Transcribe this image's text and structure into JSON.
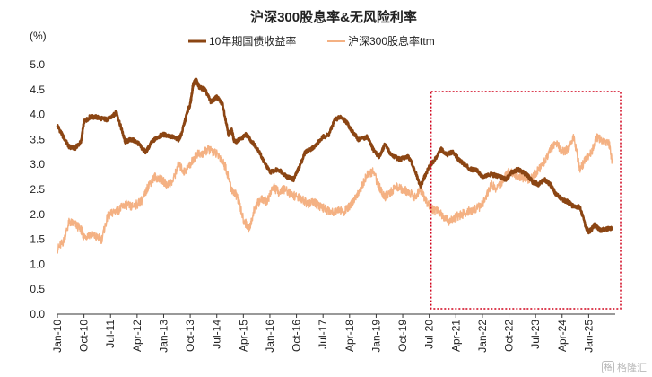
{
  "chart_data": {
    "type": "line",
    "title": "沪深300股息率&无风险利率",
    "unit_label": "(%)",
    "ylim": [
      0,
      5.0
    ],
    "y_ticks": [
      "5.0",
      "4.5",
      "4.0",
      "3.5",
      "3.0",
      "2.5",
      "2.0",
      "1.5",
      "1.0",
      "0.5",
      "0.0"
    ],
    "x_range": [
      "2010-01",
      "2025-10"
    ],
    "x_tick_labels": [
      "Jan-10",
      "Oct-10",
      "Jul-11",
      "Apr-12",
      "Jan-13",
      "Oct-13",
      "Jul-14",
      "Apr-15",
      "Jan-16",
      "Oct-16",
      "Jul-17",
      "Apr-18",
      "Jan-19",
      "Oct-19",
      "Jul-20",
      "Apr-21",
      "Jan-22",
      "Oct-22",
      "Jul-23",
      "Apr-24",
      "Jan-25"
    ],
    "legend_position": "top",
    "grid": false,
    "highlight_box": {
      "from": "2020-07",
      "to": "2025-10",
      "style": "dotted",
      "color": "#d0021b"
    },
    "series": [
      {
        "name": "10年期国债收益率",
        "color": "#8b4513",
        "points": [
          [
            "2010-01",
            3.78
          ],
          [
            "2010-03",
            3.55
          ],
          [
            "2010-05",
            3.35
          ],
          [
            "2010-07",
            3.33
          ],
          [
            "2010-09",
            3.45
          ],
          [
            "2010-10",
            3.85
          ],
          [
            "2010-12",
            3.95
          ],
          [
            "2011-02",
            3.95
          ],
          [
            "2011-04",
            3.92
          ],
          [
            "2011-06",
            3.9
          ],
          [
            "2011-08",
            3.98
          ],
          [
            "2011-09",
            4.05
          ],
          [
            "2011-11",
            3.65
          ],
          [
            "2011-12",
            3.45
          ],
          [
            "2012-02",
            3.5
          ],
          [
            "2012-04",
            3.45
          ],
          [
            "2012-06",
            3.3
          ],
          [
            "2012-07",
            3.25
          ],
          [
            "2012-09",
            3.45
          ],
          [
            "2012-11",
            3.55
          ],
          [
            "2013-01",
            3.6
          ],
          [
            "2013-04",
            3.55
          ],
          [
            "2013-06",
            3.5
          ],
          [
            "2013-07",
            3.6
          ],
          [
            "2013-09",
            4.05
          ],
          [
            "2013-10",
            4.2
          ],
          [
            "2013-11",
            4.6
          ],
          [
            "2013-12",
            4.7
          ],
          [
            "2014-01",
            4.55
          ],
          [
            "2014-03",
            4.5
          ],
          [
            "2014-05",
            4.25
          ],
          [
            "2014-07",
            4.35
          ],
          [
            "2014-09",
            4.2
          ],
          [
            "2014-11",
            3.6
          ],
          [
            "2014-12",
            3.7
          ],
          [
            "2015-01",
            3.45
          ],
          [
            "2015-03",
            3.5
          ],
          [
            "2015-05",
            3.6
          ],
          [
            "2015-07",
            3.45
          ],
          [
            "2015-09",
            3.3
          ],
          [
            "2015-11",
            3.05
          ],
          [
            "2016-01",
            2.85
          ],
          [
            "2016-04",
            2.9
          ],
          [
            "2016-07",
            2.75
          ],
          [
            "2016-09",
            2.7
          ],
          [
            "2016-11",
            2.95
          ],
          [
            "2017-01",
            3.25
          ],
          [
            "2017-04",
            3.35
          ],
          [
            "2017-07",
            3.55
          ],
          [
            "2017-09",
            3.6
          ],
          [
            "2017-11",
            3.9
          ],
          [
            "2018-01",
            3.95
          ],
          [
            "2018-03",
            3.85
          ],
          [
            "2018-05",
            3.65
          ],
          [
            "2018-07",
            3.5
          ],
          [
            "2018-10",
            3.55
          ],
          [
            "2018-12",
            3.3
          ],
          [
            "2019-02",
            3.15
          ],
          [
            "2019-04",
            3.4
          ],
          [
            "2019-06",
            3.2
          ],
          [
            "2019-09",
            3.1
          ],
          [
            "2019-12",
            3.15
          ],
          [
            "2020-02",
            2.9
          ],
          [
            "2020-04",
            2.55
          ],
          [
            "2020-05",
            2.7
          ],
          [
            "2020-07",
            2.95
          ],
          [
            "2020-09",
            3.1
          ],
          [
            "2020-11",
            3.3
          ],
          [
            "2021-01",
            3.2
          ],
          [
            "2021-03",
            3.25
          ],
          [
            "2021-05",
            3.1
          ],
          [
            "2021-07",
            3.0
          ],
          [
            "2021-09",
            2.9
          ],
          [
            "2021-11",
            2.9
          ],
          [
            "2022-01",
            2.75
          ],
          [
            "2022-04",
            2.8
          ],
          [
            "2022-07",
            2.75
          ],
          [
            "2022-09",
            2.7
          ],
          [
            "2022-11",
            2.85
          ],
          [
            "2023-01",
            2.9
          ],
          [
            "2023-04",
            2.8
          ],
          [
            "2023-06",
            2.65
          ],
          [
            "2023-08",
            2.6
          ],
          [
            "2023-10",
            2.7
          ],
          [
            "2023-12",
            2.6
          ],
          [
            "2024-02",
            2.4
          ],
          [
            "2024-04",
            2.3
          ],
          [
            "2024-06",
            2.25
          ],
          [
            "2024-08",
            2.15
          ],
          [
            "2024-10",
            2.15
          ],
          [
            "2024-12",
            1.75
          ],
          [
            "2025-01",
            1.65
          ],
          [
            "2025-02",
            1.7
          ],
          [
            "2025-03",
            1.8
          ],
          [
            "2025-05",
            1.68
          ],
          [
            "2025-07",
            1.7
          ],
          [
            "2025-09",
            1.72
          ]
        ]
      },
      {
        "name": "沪深300股息率ttm",
        "color": "#f4b183",
        "points": [
          [
            "2010-01",
            1.3
          ],
          [
            "2010-03",
            1.45
          ],
          [
            "2010-05",
            1.85
          ],
          [
            "2010-07",
            1.8
          ],
          [
            "2010-09",
            1.7
          ],
          [
            "2010-10",
            1.55
          ],
          [
            "2010-12",
            1.6
          ],
          [
            "2011-02",
            1.55
          ],
          [
            "2011-04",
            1.5
          ],
          [
            "2011-06",
            1.95
          ],
          [
            "2011-08",
            2.05
          ],
          [
            "2011-10",
            2.1
          ],
          [
            "2011-12",
            2.2
          ],
          [
            "2012-02",
            2.15
          ],
          [
            "2012-04",
            2.2
          ],
          [
            "2012-06",
            2.3
          ],
          [
            "2012-08",
            2.6
          ],
          [
            "2012-10",
            2.75
          ],
          [
            "2012-12",
            2.7
          ],
          [
            "2013-02",
            2.6
          ],
          [
            "2013-04",
            2.65
          ],
          [
            "2013-06",
            3.0
          ],
          [
            "2013-08",
            2.85
          ],
          [
            "2013-10",
            3.0
          ],
          [
            "2013-12",
            3.2
          ],
          [
            "2014-02",
            3.2
          ],
          [
            "2014-04",
            3.3
          ],
          [
            "2014-06",
            3.25
          ],
          [
            "2014-08",
            3.15
          ],
          [
            "2014-10",
            2.95
          ],
          [
            "2014-12",
            2.5
          ],
          [
            "2015-02",
            2.35
          ],
          [
            "2015-04",
            1.9
          ],
          [
            "2015-06",
            1.7
          ],
          [
            "2015-08",
            2.15
          ],
          [
            "2015-10",
            2.3
          ],
          [
            "2015-12",
            2.25
          ],
          [
            "2016-02",
            2.55
          ],
          [
            "2016-04",
            2.45
          ],
          [
            "2016-06",
            2.5
          ],
          [
            "2016-08",
            2.4
          ],
          [
            "2016-10",
            2.35
          ],
          [
            "2016-12",
            2.3
          ],
          [
            "2017-02",
            2.2
          ],
          [
            "2017-04",
            2.25
          ],
          [
            "2017-06",
            2.15
          ],
          [
            "2017-08",
            2.1
          ],
          [
            "2017-10",
            2.05
          ],
          [
            "2017-12",
            2.1
          ],
          [
            "2018-02",
            2.05
          ],
          [
            "2018-04",
            2.15
          ],
          [
            "2018-06",
            2.35
          ],
          [
            "2018-08",
            2.55
          ],
          [
            "2018-10",
            2.8
          ],
          [
            "2018-12",
            2.85
          ],
          [
            "2019-02",
            2.55
          ],
          [
            "2019-04",
            2.35
          ],
          [
            "2019-06",
            2.45
          ],
          [
            "2019-08",
            2.55
          ],
          [
            "2019-10",
            2.5
          ],
          [
            "2019-12",
            2.45
          ],
          [
            "2020-02",
            2.35
          ],
          [
            "2020-04",
            2.5
          ],
          [
            "2020-06",
            2.25
          ],
          [
            "2020-08",
            2.1
          ],
          [
            "2020-10",
            2.05
          ],
          [
            "2020-12",
            1.95
          ],
          [
            "2021-02",
            1.85
          ],
          [
            "2021-04",
            1.95
          ],
          [
            "2021-06",
            2.0
          ],
          [
            "2021-08",
            2.05
          ],
          [
            "2021-10",
            2.1
          ],
          [
            "2021-12",
            2.15
          ],
          [
            "2022-02",
            2.3
          ],
          [
            "2022-04",
            2.6
          ],
          [
            "2022-06",
            2.5
          ],
          [
            "2022-08",
            2.7
          ],
          [
            "2022-10",
            2.85
          ],
          [
            "2022-12",
            2.8
          ],
          [
            "2023-02",
            2.75
          ],
          [
            "2023-04",
            2.7
          ],
          [
            "2023-06",
            2.75
          ],
          [
            "2023-08",
            2.9
          ],
          [
            "2023-10",
            3.05
          ],
          [
            "2023-12",
            3.3
          ],
          [
            "2024-02",
            3.45
          ],
          [
            "2024-04",
            3.25
          ],
          [
            "2024-06",
            3.3
          ],
          [
            "2024-08",
            3.55
          ],
          [
            "2024-10",
            2.9
          ],
          [
            "2024-12",
            3.1
          ],
          [
            "2025-02",
            3.25
          ],
          [
            "2025-04",
            3.55
          ],
          [
            "2025-06",
            3.45
          ],
          [
            "2025-08",
            3.4
          ],
          [
            "2025-09",
            3.05
          ]
        ]
      }
    ]
  },
  "watermark": {
    "mark": "格",
    "text": "格隆汇"
  }
}
